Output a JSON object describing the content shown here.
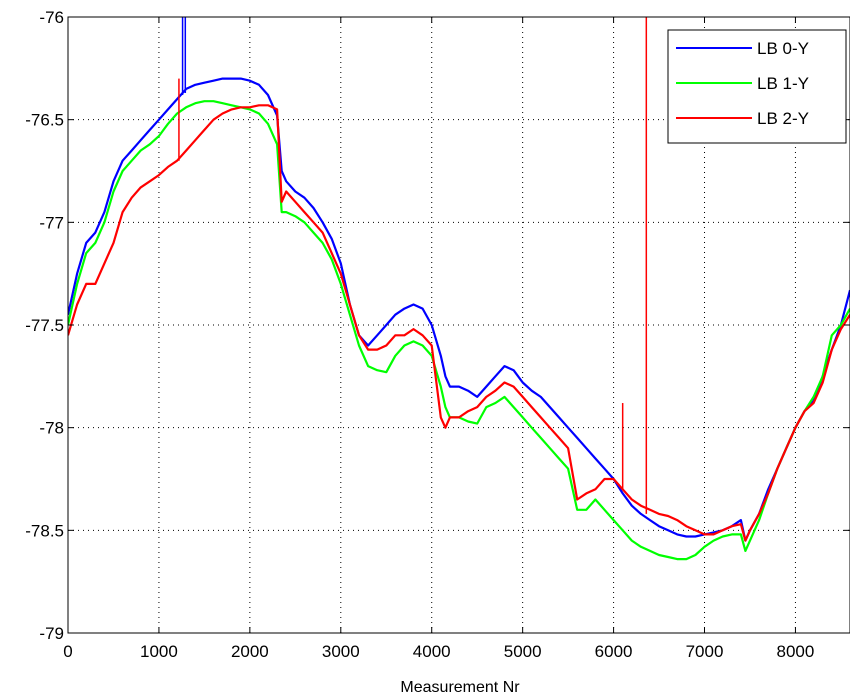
{
  "chart_data": {
    "type": "line",
    "title": "",
    "xlabel": "Measurement Nr",
    "ylabel": "",
    "xlim": [
      0,
      8600
    ],
    "ylim": [
      -79,
      -76
    ],
    "xticks": [
      0,
      1000,
      2000,
      3000,
      4000,
      5000,
      6000,
      7000,
      8000
    ],
    "yticks": [
      -76,
      -76.5,
      -77,
      -77.5,
      -78,
      -78.5,
      -79
    ],
    "xtick_labels": [
      "0",
      "1000",
      "2000",
      "3000",
      "4000",
      "5000",
      "6000",
      "7000",
      "8000"
    ],
    "ytick_labels": [
      "-76",
      "-76.5",
      "-77",
      "-77.5",
      "-78",
      "-78.5",
      "-79"
    ],
    "grid": true,
    "legend_position": "top-right",
    "series": [
      {
        "name": "LB 0-Y",
        "color": "#0000ff",
        "x": [
          0,
          100,
          200,
          300,
          400,
          500,
          600,
          700,
          800,
          900,
          1000,
          1100,
          1200,
          1300,
          1400,
          1500,
          1600,
          1700,
          1800,
          1900,
          2000,
          2100,
          2200,
          2300,
          2350,
          2400,
          2500,
          2600,
          2700,
          2800,
          2900,
          3000,
          3100,
          3200,
          3300,
          3400,
          3500,
          3600,
          3700,
          3800,
          3900,
          4000,
          4100,
          4150,
          4200,
          4300,
          4400,
          4500,
          4600,
          4700,
          4800,
          4900,
          5000,
          5100,
          5200,
          5300,
          5400,
          5500,
          5600,
          5700,
          5800,
          5900,
          6000,
          6100,
          6200,
          6300,
          6400,
          6500,
          6600,
          6700,
          6800,
          6900,
          7000,
          7100,
          7200,
          7300,
          7400,
          7450,
          7500,
          7600,
          7700,
          7800,
          7900,
          8000,
          8100,
          8200,
          8300,
          8400,
          8500,
          8600
        ],
        "y": [
          -77.45,
          -77.25,
          -77.1,
          -77.05,
          -76.95,
          -76.8,
          -76.7,
          -76.65,
          -76.6,
          -76.55,
          -76.5,
          -76.45,
          -76.4,
          -76.35,
          -76.33,
          -76.32,
          -76.31,
          -76.3,
          -76.3,
          -76.3,
          -76.31,
          -76.33,
          -76.38,
          -76.48,
          -76.75,
          -76.8,
          -76.85,
          -76.88,
          -76.93,
          -77.0,
          -77.08,
          -77.2,
          -77.4,
          -77.55,
          -77.6,
          -77.55,
          -77.5,
          -77.45,
          -77.42,
          -77.4,
          -77.42,
          -77.5,
          -77.65,
          -77.75,
          -77.8,
          -77.8,
          -77.82,
          -77.85,
          -77.8,
          -77.75,
          -77.7,
          -77.72,
          -77.78,
          -77.82,
          -77.85,
          -77.9,
          -77.95,
          -78.0,
          -78.05,
          -78.1,
          -78.15,
          -78.2,
          -78.25,
          -78.32,
          -78.38,
          -78.42,
          -78.45,
          -78.48,
          -78.5,
          -78.52,
          -78.53,
          -78.53,
          -78.52,
          -78.51,
          -78.5,
          -78.48,
          -78.45,
          -78.55,
          -78.5,
          -78.42,
          -78.3,
          -78.2,
          -78.1,
          -78.0,
          -77.92,
          -77.87,
          -77.75,
          -77.62,
          -77.5,
          -77.33
        ]
      },
      {
        "name": "LB 1-Y",
        "color": "#00ff00",
        "x": [
          0,
          100,
          200,
          300,
          400,
          500,
          600,
          700,
          800,
          900,
          1000,
          1100,
          1200,
          1300,
          1400,
          1500,
          1600,
          1700,
          1800,
          1900,
          2000,
          2100,
          2200,
          2300,
          2350,
          2400,
          2500,
          2600,
          2700,
          2800,
          2900,
          3000,
          3100,
          3200,
          3300,
          3400,
          3500,
          3600,
          3700,
          3800,
          3900,
          4000,
          4100,
          4150,
          4200,
          4300,
          4400,
          4500,
          4600,
          4700,
          4800,
          4900,
          5000,
          5100,
          5200,
          5300,
          5400,
          5500,
          5600,
          5700,
          5800,
          5900,
          6000,
          6100,
          6200,
          6300,
          6400,
          6500,
          6600,
          6700,
          6800,
          6900,
          7000,
          7100,
          7200,
          7300,
          7400,
          7450,
          7500,
          7600,
          7700,
          7800,
          7900,
          8000,
          8100,
          8200,
          8300,
          8400,
          8500,
          8600
        ],
        "y": [
          -77.5,
          -77.3,
          -77.15,
          -77.1,
          -77.0,
          -76.85,
          -76.75,
          -76.7,
          -76.65,
          -76.62,
          -76.58,
          -76.52,
          -76.47,
          -76.44,
          -76.42,
          -76.41,
          -76.41,
          -76.42,
          -76.43,
          -76.44,
          -76.45,
          -76.47,
          -76.52,
          -76.62,
          -76.95,
          -76.95,
          -76.97,
          -77.0,
          -77.05,
          -77.1,
          -77.18,
          -77.3,
          -77.45,
          -77.6,
          -77.7,
          -77.72,
          -77.73,
          -77.65,
          -77.6,
          -77.58,
          -77.6,
          -77.65,
          -77.8,
          -77.9,
          -77.95,
          -77.95,
          -77.97,
          -77.98,
          -77.9,
          -77.88,
          -77.85,
          -77.9,
          -77.95,
          -78.0,
          -78.05,
          -78.1,
          -78.15,
          -78.2,
          -78.4,
          -78.4,
          -78.35,
          -78.4,
          -78.45,
          -78.5,
          -78.55,
          -78.58,
          -78.6,
          -78.62,
          -78.63,
          -78.64,
          -78.64,
          -78.62,
          -78.58,
          -78.55,
          -78.53,
          -78.52,
          -78.52,
          -78.6,
          -78.55,
          -78.45,
          -78.32,
          -78.2,
          -78.1,
          -78.0,
          -77.92,
          -77.85,
          -77.75,
          -77.55,
          -77.5,
          -77.42
        ]
      },
      {
        "name": "LB 2-Y",
        "color": "#ff0000",
        "x": [
          0,
          100,
          200,
          300,
          400,
          500,
          600,
          700,
          800,
          900,
          1000,
          1100,
          1200,
          1300,
          1400,
          1500,
          1600,
          1700,
          1800,
          1900,
          2000,
          2100,
          2200,
          2300,
          2350,
          2400,
          2500,
          2600,
          2700,
          2800,
          2900,
          3000,
          3100,
          3200,
          3300,
          3400,
          3500,
          3600,
          3700,
          3800,
          3900,
          4000,
          4100,
          4150,
          4200,
          4300,
          4400,
          4500,
          4600,
          4700,
          4800,
          4900,
          5000,
          5100,
          5200,
          5300,
          5400,
          5500,
          5600,
          5700,
          5800,
          5900,
          6000,
          6100,
          6200,
          6300,
          6400,
          6500,
          6600,
          6700,
          6800,
          6900,
          7000,
          7100,
          7200,
          7300,
          7400,
          7450,
          7500,
          7600,
          7700,
          7800,
          7900,
          8000,
          8100,
          8200,
          8300,
          8400,
          8500,
          8600
        ],
        "y": [
          -77.55,
          -77.4,
          -77.3,
          -77.3,
          -77.2,
          -77.1,
          -76.95,
          -76.88,
          -76.83,
          -76.8,
          -76.77,
          -76.73,
          -76.7,
          -76.65,
          -76.6,
          -76.55,
          -76.5,
          -76.47,
          -76.45,
          -76.44,
          -76.44,
          -76.43,
          -76.43,
          -76.45,
          -76.9,
          -76.85,
          -76.9,
          -76.95,
          -77.0,
          -77.05,
          -77.15,
          -77.25,
          -77.4,
          -77.55,
          -77.62,
          -77.62,
          -77.6,
          -77.55,
          -77.55,
          -77.52,
          -77.55,
          -77.6,
          -77.95,
          -78.0,
          -77.95,
          -77.95,
          -77.92,
          -77.9,
          -77.85,
          -77.82,
          -77.78,
          -77.8,
          -77.85,
          -77.9,
          -77.95,
          -78.0,
          -78.05,
          -78.1,
          -78.35,
          -78.32,
          -78.3,
          -78.25,
          -78.25,
          -78.3,
          -78.35,
          -78.38,
          -78.4,
          -78.42,
          -78.43,
          -78.45,
          -78.48,
          -78.5,
          -78.52,
          -78.52,
          -78.5,
          -78.48,
          -78.47,
          -78.55,
          -78.5,
          -78.42,
          -78.32,
          -78.2,
          -78.1,
          -78.0,
          -77.92,
          -77.88,
          -77.78,
          -77.62,
          -77.52,
          -77.45
        ]
      }
    ],
    "spikes": [
      {
        "series": 0,
        "x": 1260,
        "y_top": -76.0,
        "y_base": -76.38
      },
      {
        "series": 0,
        "x": 1290,
        "y_top": -76.0,
        "y_base": -76.37
      },
      {
        "series": 2,
        "x": 1220,
        "y_top": -76.3,
        "y_base": -76.7
      },
      {
        "series": 2,
        "x": 6360,
        "y_top": -76.0,
        "y_base": -78.42
      },
      {
        "series": 2,
        "x": 6100,
        "y_top": -77.88,
        "y_base": -78.3
      }
    ]
  }
}
